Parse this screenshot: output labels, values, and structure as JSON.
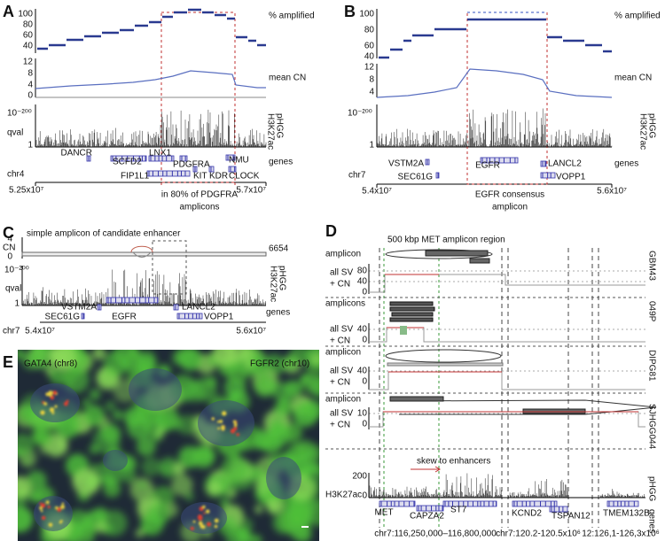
{
  "panel_a": {
    "label": "A",
    "amplified_ticks": [
      "100",
      "80",
      "60",
      "40"
    ],
    "cn_ticks": [
      "12",
      "8",
      "4",
      "0"
    ],
    "qval_ticks": [
      "10⁻²⁰⁰",
      "1"
    ],
    "track_labels": [
      "% amplified",
      "mean CN",
      "pHGG",
      "H3K27ac",
      "qval",
      "genes"
    ],
    "genes": [
      "DANCR",
      "SCFD2",
      "LNX1",
      "PDGFRA",
      "NMU",
      "FIP1L1",
      "KIT",
      "KDR",
      "CLOCK"
    ],
    "chromosome": "chr4",
    "x_ticks": [
      "5.25x10⁷",
      "5.7x10⁷"
    ],
    "annotation": [
      "in 80% of PDGFRA",
      "amplicons"
    ]
  },
  "panel_b": {
    "label": "B",
    "amplified_ticks": [
      "100",
      "80",
      "60",
      "40"
    ],
    "cn_ticks": [
      "12",
      "8",
      "4"
    ],
    "qval_ticks": [
      "10⁻²⁰⁰",
      "1"
    ],
    "track_labels": [
      "% amplified",
      "mean CN",
      "pHGG",
      "H3K27ac",
      "genes"
    ],
    "genes": [
      "VSTM2A",
      "LANCL2",
      "SEC61G",
      "EGFR",
      "VOPP1"
    ],
    "chromosome": "chr7",
    "x_ticks": [
      "5.4x10⁷",
      "5.6x10⁷"
    ],
    "annotation": [
      "EGFR consensus",
      "amplicon"
    ]
  },
  "panel_c": {
    "label": "C",
    "title": "simple amplicon of candidate enhancer",
    "cn_ticks": [
      "4",
      "0"
    ],
    "cn_max": "6654",
    "qval_ticks": [
      "10⁻²⁰⁰",
      "1"
    ],
    "track_labels": [
      "CN",
      "pHGG",
      "H3K27ac",
      "qval",
      "genes"
    ],
    "genes": [
      "VSTM2A",
      "LANCL2",
      "SEC61G",
      "EGFR",
      "VOPP1"
    ],
    "chromosome": "chr7",
    "x_ticks": [
      "5.4x10⁷",
      "5.6x10⁷"
    ]
  },
  "panel_d": {
    "label": "D",
    "title": "500 kbp MET amplicon region",
    "samples": [
      {
        "name": "GBM43",
        "amplicon_label": "amplicon",
        "sv_label": [
          "all SV",
          "+ CN"
        ],
        "ticks": [
          "80",
          "40",
          "0"
        ]
      },
      {
        "name": "049P",
        "amplicon_label": "amplicons",
        "sv_label": [
          "all SV",
          "+ CN"
        ],
        "ticks": [
          "40",
          "0"
        ]
      },
      {
        "name": "DIPG81",
        "amplicon_label": "amplicon",
        "sv_label": [
          "all SV",
          "+ CN"
        ],
        "ticks": [
          "40",
          "0"
        ]
      },
      {
        "name": "SJHGG044",
        "amplicon_label": "amplicon",
        "sv_label": [
          "all SV",
          "+ CN"
        ],
        "ticks": [
          "10",
          "0"
        ]
      }
    ],
    "annotation": "skew to enhancers",
    "h3k27ac_label": "H3K27ac",
    "h3k27ac_ticks": [
      "200",
      "0"
    ],
    "track_labels": [
      "pHGG",
      "genes"
    ],
    "genes": [
      "MET",
      "CAPZA2",
      "ST7",
      "KCND2",
      "TSPAN12",
      "TMEM132B"
    ],
    "regions": [
      "chr7:116,250,000–116,800,000",
      "chr7:120.2-120.5x10⁶",
      "12:126,1-126,3x10⁶"
    ]
  },
  "panel_e": {
    "label": "E",
    "probes": [
      "GATA4 (chr8)",
      "FGFR2 (chr10)"
    ]
  }
}
